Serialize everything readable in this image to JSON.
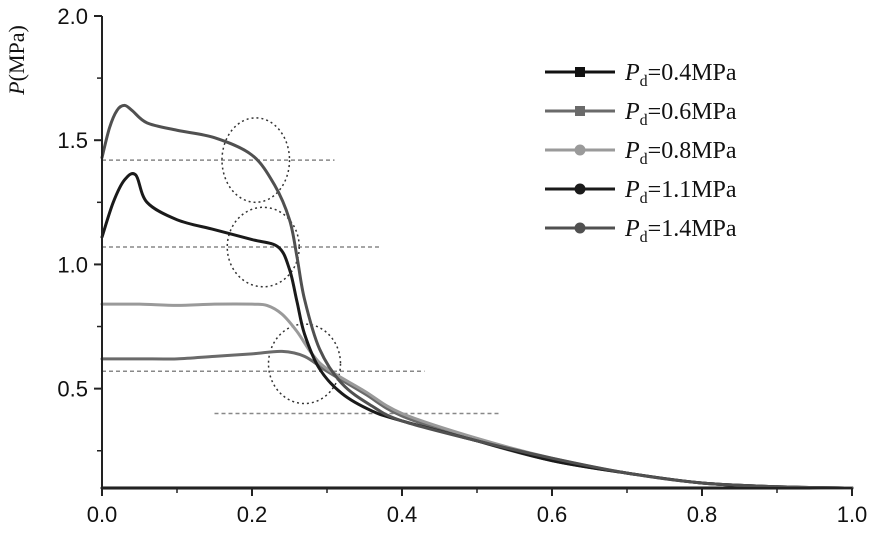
{
  "chart_data": {
    "type": "line",
    "xlabel": "",
    "ylabel": "P(MPa)",
    "ylabel_parts": {
      "symbol": "P",
      "unit": "(MPa)"
    },
    "xlim": [
      0.0,
      1.0
    ],
    "ylim": [
      0.1,
      2.0
    ],
    "x_ticks": [
      "0.0",
      "0.2",
      "0.4",
      "0.6",
      "0.8",
      "1.0"
    ],
    "x_tick_values": [
      0.0,
      0.2,
      0.4,
      0.6,
      0.8,
      1.0
    ],
    "y_ticks": [
      "0.5",
      "1.0",
      "1.5",
      "2.0"
    ],
    "y_tick_values": [
      0.5,
      1.0,
      1.5,
      2.0
    ],
    "legend_position": "top-right",
    "series": [
      {
        "name": "Pd=0.4MPa",
        "label_main": "P",
        "label_sub": "d",
        "label_rest": "=0.4MPa",
        "color": "#111111",
        "marker": "square",
        "x": [
          0.0,
          0.2,
          0.4,
          0.6,
          0.8,
          1.0
        ],
        "y": [
          0.1,
          0.1,
          0.1,
          0.1,
          0.1,
          0.1
        ]
      },
      {
        "name": "Pd=0.6MPa",
        "label_main": "P",
        "label_sub": "d",
        "label_rest": "=0.6MPa",
        "color": "#6a6a6a",
        "marker": "square",
        "x": [
          0.0,
          0.05,
          0.1,
          0.15,
          0.2,
          0.24,
          0.27,
          0.3,
          0.35,
          0.4,
          0.5,
          0.6,
          0.7,
          0.8,
          0.9,
          1.0
        ],
        "y": [
          0.62,
          0.62,
          0.62,
          0.63,
          0.64,
          0.65,
          0.63,
          0.57,
          0.48,
          0.39,
          0.29,
          0.21,
          0.16,
          0.12,
          0.105,
          0.1
        ]
      },
      {
        "name": "Pd=0.8MPa",
        "label_main": "P",
        "label_sub": "d",
        "label_rest": "=0.8MPa",
        "color": "#9a9a9a",
        "marker": "circle",
        "x": [
          0.0,
          0.05,
          0.1,
          0.15,
          0.2,
          0.22,
          0.24,
          0.26,
          0.28,
          0.3,
          0.35,
          0.4,
          0.5,
          0.6,
          0.7,
          0.8,
          0.9,
          1.0
        ],
        "y": [
          0.84,
          0.84,
          0.835,
          0.84,
          0.84,
          0.835,
          0.8,
          0.73,
          0.64,
          0.58,
          0.49,
          0.4,
          0.3,
          0.22,
          0.16,
          0.12,
          0.105,
          0.1
        ]
      },
      {
        "name": "Pd=1.1MPa",
        "label_main": "P",
        "label_sub": "d",
        "label_rest": "=1.1MPa",
        "color": "#1a1a1a",
        "marker": "circle",
        "x": [
          0.0,
          0.015,
          0.03,
          0.045,
          0.06,
          0.1,
          0.15,
          0.2,
          0.235,
          0.25,
          0.26,
          0.27,
          0.29,
          0.32,
          0.36,
          0.4,
          0.5,
          0.6,
          0.7,
          0.8,
          0.9,
          1.0
        ],
        "y": [
          1.11,
          1.25,
          1.34,
          1.36,
          1.25,
          1.18,
          1.14,
          1.1,
          1.07,
          0.98,
          0.85,
          0.72,
          0.58,
          0.48,
          0.41,
          0.37,
          0.29,
          0.21,
          0.16,
          0.12,
          0.105,
          0.1
        ]
      },
      {
        "name": "Pd=1.4MPa",
        "label_main": "P",
        "label_sub": "d",
        "label_rest": "=1.4MPa",
        "color": "#505050",
        "marker": "circle",
        "x": [
          0.0,
          0.01,
          0.02,
          0.03,
          0.04,
          0.06,
          0.1,
          0.15,
          0.2,
          0.23,
          0.25,
          0.26,
          0.27,
          0.29,
          0.32,
          0.36,
          0.4,
          0.5,
          0.6,
          0.7,
          0.8,
          0.9,
          1.0
        ],
        "y": [
          1.43,
          1.55,
          1.62,
          1.64,
          1.62,
          1.57,
          1.54,
          1.51,
          1.44,
          1.32,
          1.18,
          1.03,
          0.86,
          0.66,
          0.52,
          0.43,
          0.37,
          0.29,
          0.22,
          0.16,
          0.12,
          0.105,
          0.1
        ]
      }
    ],
    "dashed_lines": [
      {
        "y": 1.42,
        "x_from": 0.0,
        "x_to": 0.31
      },
      {
        "y": 1.07,
        "x_from": 0.0,
        "x_to": 0.37
      },
      {
        "y": 0.57,
        "x_from": 0.0,
        "x_to": 0.43
      },
      {
        "y": 0.4,
        "x_from": 0.15,
        "x_to": 0.53
      }
    ],
    "dotted_circles": [
      {
        "cx": 0.205,
        "cy": 1.42,
        "rx": 0.045,
        "ry": 0.17
      },
      {
        "cx": 0.215,
        "cy": 1.07,
        "rx": 0.048,
        "ry": 0.16
      },
      {
        "cx": 0.27,
        "cy": 0.6,
        "rx": 0.048,
        "ry": 0.16
      }
    ]
  }
}
